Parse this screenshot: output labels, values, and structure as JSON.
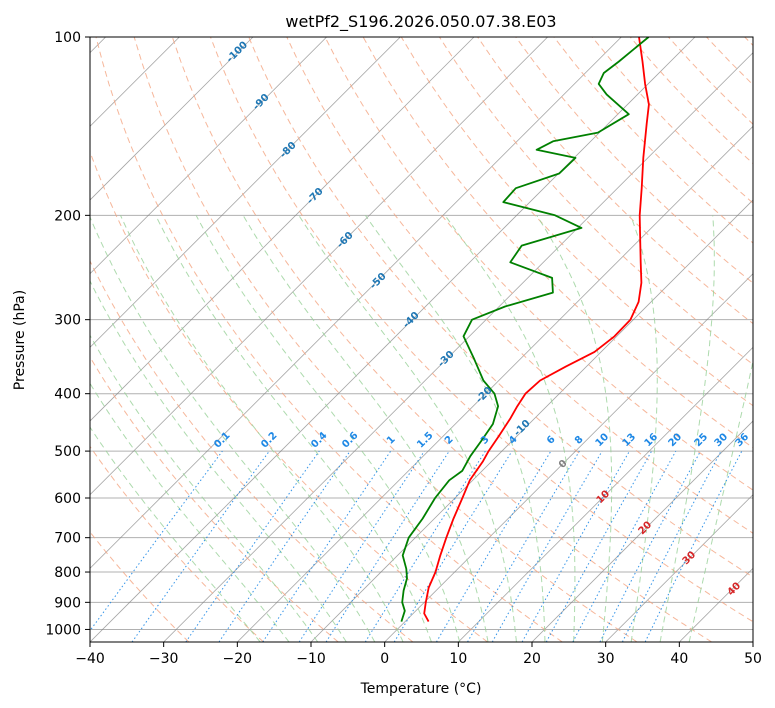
{
  "chart_data": {
    "type": "skew-t",
    "title": "wetPf2_S196.2026.050.07.38.E03",
    "xlabel": "Temperature (°C)",
    "ylabel": "Pressure (hPa)",
    "xlim": [
      -40,
      50
    ],
    "ylim": [
      1050,
      100
    ],
    "xticks": [
      -40,
      -30,
      -20,
      -10,
      0,
      10,
      20,
      30,
      40,
      50
    ],
    "xtick_labels": [
      "−40",
      "−30",
      "−20",
      "−10",
      "0",
      "10",
      "20",
      "30",
      "40",
      "50"
    ],
    "yticks": [
      1000,
      900,
      800,
      700,
      600,
      500,
      400,
      300,
      200,
      100
    ],
    "ytick_labels": [
      "1000",
      "900",
      "800",
      "700",
      "600",
      "500",
      "400",
      "300",
      "200",
      "100"
    ],
    "colors": {
      "temperature": "#ff0000",
      "dewpoint": "#008000",
      "isotherm": "#808080",
      "dry_adiabat": "#f4a582",
      "moist_adiabat": "#98d198",
      "mixing_ratio": "#1e88e5",
      "grid": "#b0b0b0"
    },
    "series": [
      {
        "name": "Temperature",
        "points": [
          {
            "p": 970,
            "t": 3.2
          },
          {
            "p": 940,
            "t": 1.5
          },
          {
            "p": 900,
            "t": 0.2
          },
          {
            "p": 850,
            "t": -1.4
          },
          {
            "p": 800,
            "t": -2.6
          },
          {
            "p": 750,
            "t": -4.2
          },
          {
            "p": 700,
            "t": -5.8
          },
          {
            "p": 650,
            "t": -7.4
          },
          {
            "p": 600,
            "t": -9.0
          },
          {
            "p": 560,
            "t": -10.4
          },
          {
            "p": 520,
            "t": -11.2
          },
          {
            "p": 500,
            "t": -11.8
          },
          {
            "p": 470,
            "t": -12.5
          },
          {
            "p": 440,
            "t": -13.3
          },
          {
            "p": 420,
            "t": -14.0
          },
          {
            "p": 400,
            "t": -14.6
          },
          {
            "p": 380,
            "t": -14.4
          },
          {
            "p": 360,
            "t": -12.8
          },
          {
            "p": 340,
            "t": -10.9
          },
          {
            "p": 320,
            "t": -10.3
          },
          {
            "p": 300,
            "t": -10.4
          },
          {
            "p": 280,
            "t": -11.7
          },
          {
            "p": 260,
            "t": -13.9
          },
          {
            "p": 240,
            "t": -16.8
          },
          {
            "p": 220,
            "t": -19.9
          },
          {
            "p": 200,
            "t": -23.3
          },
          {
            "p": 180,
            "t": -26.7
          },
          {
            "p": 160,
            "t": -30.6
          },
          {
            "p": 140,
            "t": -34.8
          },
          {
            "p": 130,
            "t": -37.1
          },
          {
            "p": 120,
            "t": -40.4
          },
          {
            "p": 110,
            "t": -43.8
          },
          {
            "p": 100,
            "t": -47.6
          }
        ]
      },
      {
        "name": "Dewpoint",
        "points": [
          {
            "p": 970,
            "t": -0.5
          },
          {
            "p": 930,
            "t": -1.5
          },
          {
            "p": 900,
            "t": -3.0
          },
          {
            "p": 860,
            "t": -4.4
          },
          {
            "p": 820,
            "t": -5.6
          },
          {
            "p": 790,
            "t": -7.0
          },
          {
            "p": 750,
            "t": -9.3
          },
          {
            "p": 700,
            "t": -10.9
          },
          {
            "p": 650,
            "t": -11.6
          },
          {
            "p": 600,
            "t": -12.7
          },
          {
            "p": 560,
            "t": -13.2
          },
          {
            "p": 540,
            "t": -12.7
          },
          {
            "p": 510,
            "t": -13.6
          },
          {
            "p": 480,
            "t": -14.2
          },
          {
            "p": 450,
            "t": -14.9
          },
          {
            "p": 420,
            "t": -16.6
          },
          {
            "p": 400,
            "t": -18.8
          },
          {
            "p": 380,
            "t": -22.1
          },
          {
            "p": 350,
            "t": -26.2
          },
          {
            "p": 320,
            "t": -30.8
          },
          {
            "p": 300,
            "t": -31.9
          },
          {
            "p": 285,
            "t": -29.2
          },
          {
            "p": 270,
            "t": -24.6
          },
          {
            "p": 255,
            "t": -26.7
          },
          {
            "p": 240,
            "t": -34.5
          },
          {
            "p": 225,
            "t": -35.2
          },
          {
            "p": 210,
            "t": -29.5
          },
          {
            "p": 200,
            "t": -34.8
          },
          {
            "p": 190,
            "t": -43.6
          },
          {
            "p": 180,
            "t": -43.8
          },
          {
            "p": 170,
            "t": -39.9
          },
          {
            "p": 160,
            "t": -39.8
          },
          {
            "p": 155,
            "t": -46.2
          },
          {
            "p": 150,
            "t": -45.1
          },
          {
            "p": 145,
            "t": -40.2
          },
          {
            "p": 135,
            "t": -38.5
          },
          {
            "p": 125,
            "t": -44.2
          },
          {
            "p": 120,
            "t": -46.7
          },
          {
            "p": 115,
            "t": -47.5
          },
          {
            "p": 110,
            "t": -47.0
          },
          {
            "p": 100,
            "t": -46.3
          }
        ]
      }
    ],
    "dry_adiabat_labels": [
      "-100",
      "-90",
      "-80",
      "-70",
      "-60",
      "-50",
      "-40",
      "-30",
      "-20",
      "-10"
    ],
    "dry_adiabat_label_values": [
      -100,
      -90,
      -80,
      -70,
      -60,
      -50,
      -40,
      -30,
      -20,
      -10
    ],
    "moist_adiabat_labels": [
      "0",
      "10",
      "20",
      "30",
      "40"
    ],
    "moist_adiabat_label_values": [
      0,
      10,
      20,
      30,
      40
    ],
    "mixing_ratio_labels": [
      "0.1",
      "0.2",
      "0.4",
      "0.6",
      "1",
      "1.5",
      "2",
      "3",
      "4",
      "6",
      "8",
      "10",
      "13",
      "16",
      "20",
      "25",
      "30",
      "36"
    ],
    "mixing_ratio_values": [
      0.1,
      0.2,
      0.4,
      0.6,
      1,
      1.5,
      2,
      3,
      4,
      6,
      8,
      10,
      13,
      16,
      20,
      25,
      30,
      36
    ]
  }
}
